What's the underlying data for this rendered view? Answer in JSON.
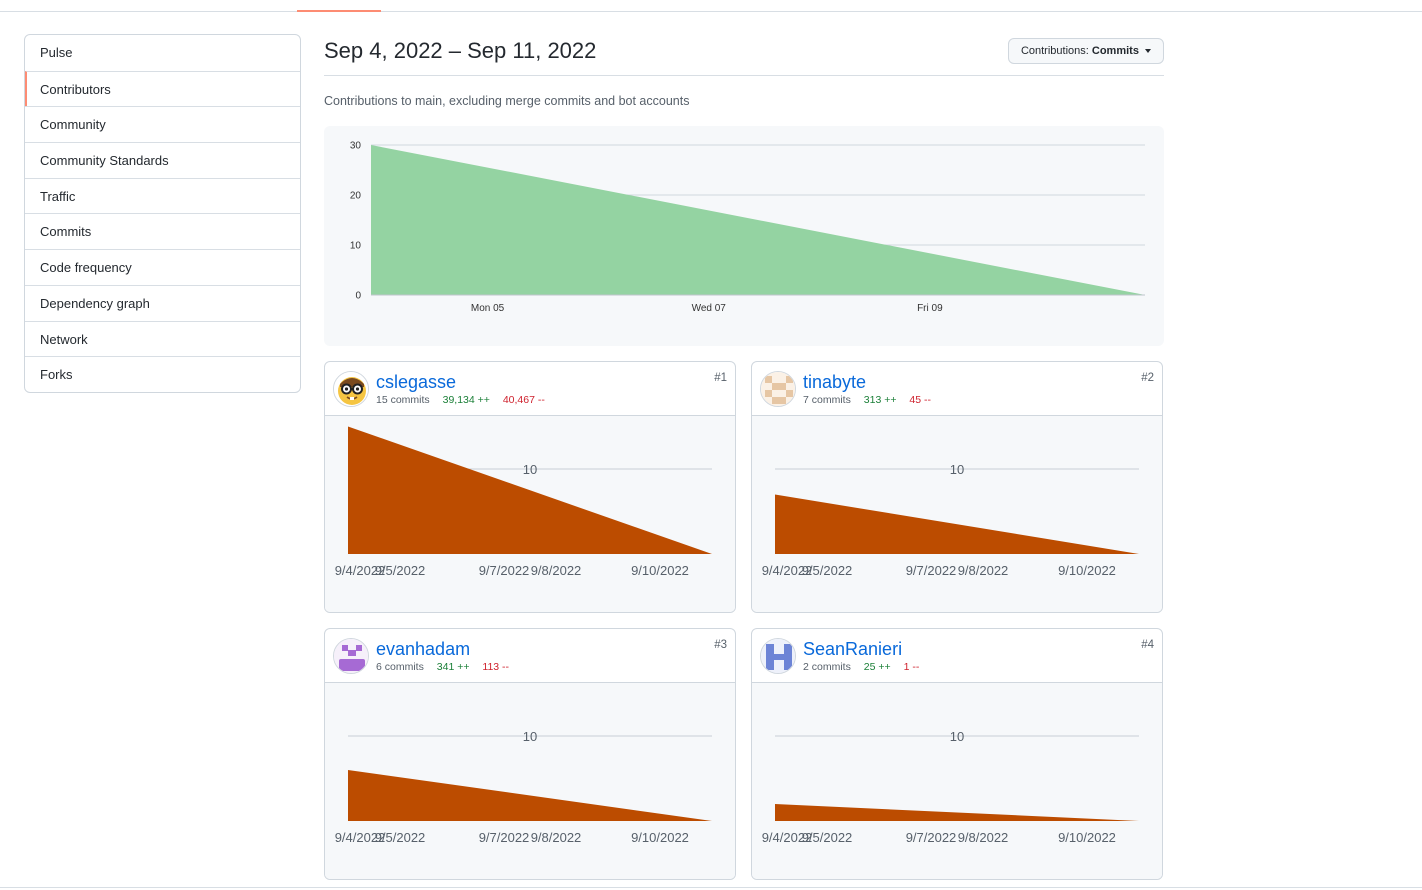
{
  "sidebar": {
    "items": [
      {
        "label": "Pulse"
      },
      {
        "label": "Contributors",
        "selected": true
      },
      {
        "label": "Community"
      },
      {
        "label": "Community Standards"
      },
      {
        "label": "Traffic"
      },
      {
        "label": "Commits"
      },
      {
        "label": "Code frequency"
      },
      {
        "label": "Dependency graph"
      },
      {
        "label": "Network"
      },
      {
        "label": "Forks"
      }
    ]
  },
  "header": {
    "title": "Sep 4, 2022 – Sep 11, 2022",
    "dropdown_prefix": "Contributions:",
    "dropdown_value": "Commits"
  },
  "subtitle": "Contributions to main, excluding merge commits and bot accounts",
  "colors": {
    "main_area": "#94d3a2",
    "contributor_area": "#bc4c00",
    "selected_accent": "#fd8c73",
    "link": "#0969da",
    "additions": "#1a7f37",
    "deletions": "#cf222e"
  },
  "chart_data": [
    {
      "type": "area",
      "x_ticks": [
        "Mon 05",
        "Wed 07",
        "Fri 09"
      ],
      "y_ticks": [
        0,
        10,
        20,
        30
      ],
      "ylim": [
        0,
        30
      ],
      "x": [
        "2022-09-04",
        "2022-09-11"
      ],
      "series": [
        {
          "values": [
            30,
            0
          ]
        }
      ],
      "grid": true
    },
    {
      "type": "area",
      "contributor": "cslegasse",
      "x_ticks": [
        "9/4/2022",
        "9/5/2022",
        "9/7/2022",
        "9/8/2022",
        "9/10/2022"
      ],
      "y_ticks": [
        10
      ],
      "ylim": [
        0,
        15
      ],
      "x": [
        "2022-09-04",
        "2022-09-11"
      ],
      "series": [
        {
          "values": [
            15,
            0
          ]
        }
      ]
    },
    {
      "type": "area",
      "contributor": "tinabyte",
      "x_ticks": [
        "9/4/2022",
        "9/5/2022",
        "9/7/2022",
        "9/8/2022",
        "9/10/2022"
      ],
      "y_ticks": [
        10
      ],
      "ylim": [
        0,
        15
      ],
      "x": [
        "2022-09-04",
        "2022-09-11"
      ],
      "series": [
        {
          "values": [
            7,
            0
          ]
        }
      ]
    },
    {
      "type": "area",
      "contributor": "evanhadam",
      "x_ticks": [
        "9/4/2022",
        "9/5/2022",
        "9/7/2022",
        "9/8/2022",
        "9/10/2022"
      ],
      "y_ticks": [
        10
      ],
      "ylim": [
        0,
        15
      ],
      "x": [
        "2022-09-04",
        "2022-09-11"
      ],
      "series": [
        {
          "values": [
            6,
            0
          ]
        }
      ]
    },
    {
      "type": "area",
      "contributor": "SeanRanieri",
      "x_ticks": [
        "9/4/2022",
        "9/5/2022",
        "9/7/2022",
        "9/8/2022",
        "9/10/2022"
      ],
      "y_ticks": [
        10
      ],
      "ylim": [
        0,
        15
      ],
      "x": [
        "2022-09-04",
        "2022-09-11"
      ],
      "series": [
        {
          "values": [
            2,
            0
          ]
        }
      ]
    }
  ],
  "contributors": [
    {
      "username": "cslegasse",
      "commits": "15 commits",
      "additions": "39,134 ++",
      "deletions": "40,467 --",
      "rank": "#1",
      "avatar_icon": "nerd-face-emoji-icon"
    },
    {
      "username": "tinabyte",
      "commits": "7 commits",
      "additions": "313 ++",
      "deletions": "45 --",
      "rank": "#2",
      "avatar_icon": "identicon-beige-icon"
    },
    {
      "username": "evanhadam",
      "commits": "6 commits",
      "additions": "341 ++",
      "deletions": "113 --",
      "rank": "#3",
      "avatar_icon": "identicon-purple-icon"
    },
    {
      "username": "SeanRanieri",
      "commits": "2 commits",
      "additions": "25 ++",
      "deletions": "1 --",
      "rank": "#4",
      "avatar_icon": "identicon-blue-icon"
    }
  ]
}
